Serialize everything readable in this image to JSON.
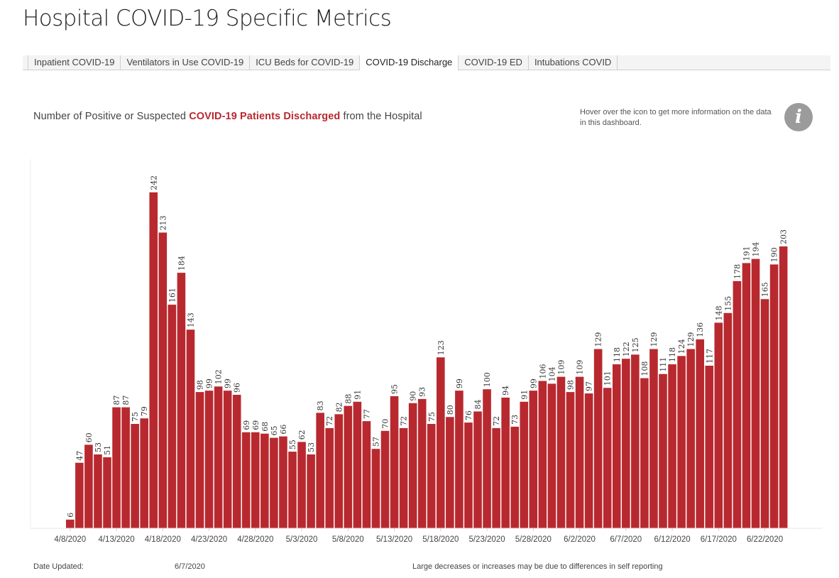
{
  "page": {
    "title": "Hospital COVID-19 Specific Metrics"
  },
  "tabs": [
    {
      "label": "Inpatient COVID-19",
      "active": false
    },
    {
      "label": "Ventilators in Use COVID-19",
      "active": false
    },
    {
      "label": "ICU Beds for COVID-19",
      "active": false
    },
    {
      "label": "COVID-19 Discharge",
      "active": true
    },
    {
      "label": "COVID-19 ED",
      "active": false
    },
    {
      "label": "Intubations COVID",
      "active": false
    }
  ],
  "subtitle": {
    "prefix": "Number of Positive or Suspected ",
    "highlight": "COVID-19 Patients Discharged",
    "suffix": " from the Hospital"
  },
  "info": {
    "note": "Hover over the icon to get more information on the data in this dashboard.",
    "icon": "info-icon",
    "glyph": "i"
  },
  "footer": {
    "date_label": "Date Updated:",
    "date_value": "6/7/2020",
    "disclaimer": "Large decreases or increases may be due to differences in self reporting"
  },
  "colors": {
    "bar": "#b8292f",
    "highlight": "#b8292f"
  },
  "chart_data": {
    "type": "bar",
    "x_start": "4/8/2020",
    "tick_labels": [
      "4/8/2020",
      "4/13/2020",
      "4/18/2020",
      "4/23/2020",
      "4/28/2020",
      "5/3/2020",
      "5/8/2020",
      "5/13/2020",
      "5/18/2020",
      "5/23/2020",
      "5/28/2020",
      "6/2/2020",
      "6/7/2020",
      "6/12/2020",
      "6/17/2020",
      "6/22/2020"
    ],
    "values": [
      6,
      47,
      60,
      53,
      51,
      87,
      87,
      75,
      79,
      242,
      213,
      161,
      184,
      143,
      98,
      99,
      102,
      99,
      96,
      69,
      69,
      68,
      65,
      66,
      55,
      62,
      53,
      83,
      72,
      82,
      88,
      91,
      77,
      57,
      70,
      95,
      72,
      90,
      93,
      75,
      123,
      80,
      99,
      76,
      84,
      100,
      72,
      94,
      73,
      91,
      99,
      106,
      104,
      109,
      98,
      109,
      97,
      129,
      101,
      118,
      122,
      125,
      108,
      129,
      111,
      118,
      124,
      129,
      136,
      117,
      148,
      155,
      178,
      191,
      194,
      165,
      190,
      203
    ],
    "ylim": [
      0,
      266
    ],
    "grid": false,
    "title": "",
    "xlabel": "",
    "ylabel": ""
  }
}
